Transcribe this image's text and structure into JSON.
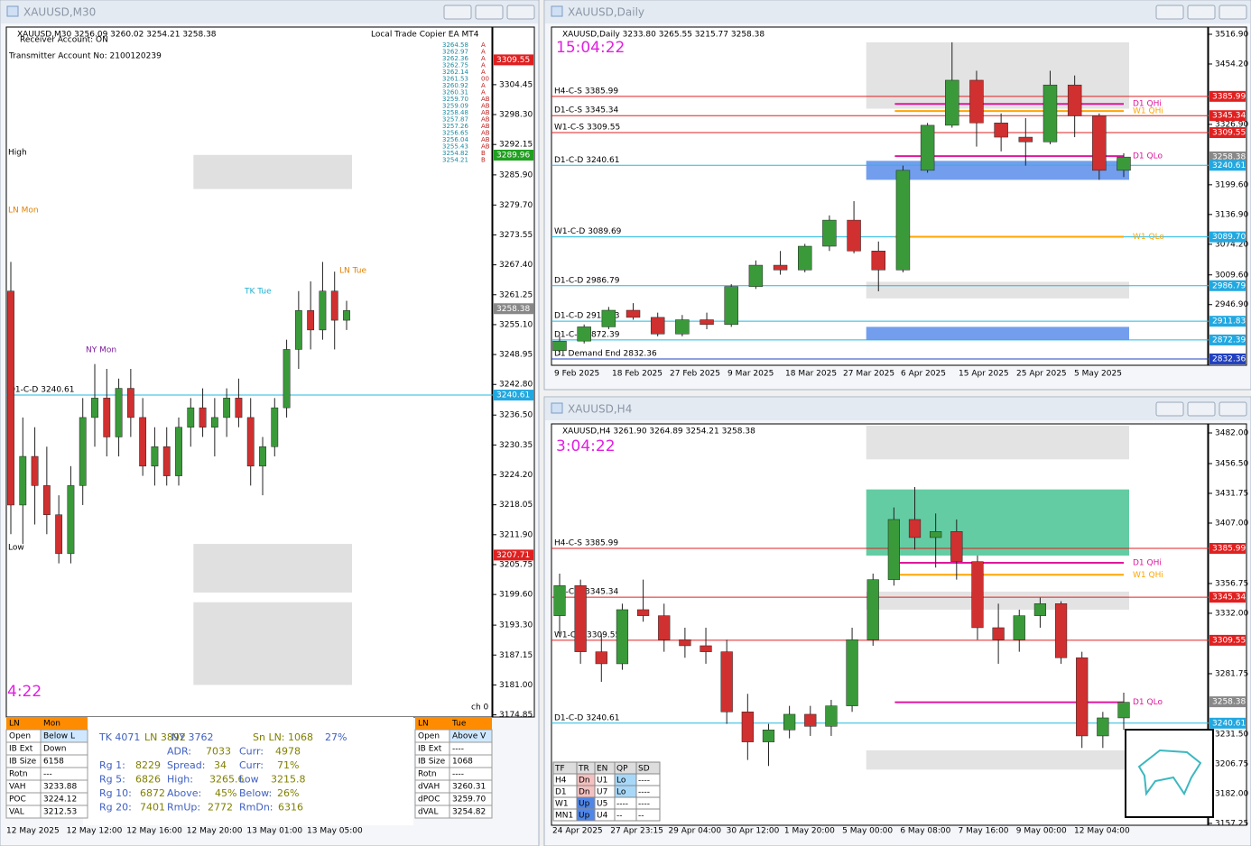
{
  "account": {
    "receiver": "Receiver Account: ON",
    "transmitter": "Transmitter Account No: 2100120239",
    "copier": "Local Trade Copier EA MT4"
  },
  "quotes": [
    [
      "3264.58",
      "A"
    ],
    [
      "3262.97",
      "A"
    ],
    [
      "3262.36",
      "A"
    ],
    [
      "3262.75",
      "A"
    ],
    [
      "3262.14",
      "A"
    ],
    [
      "3261.53",
      "00"
    ],
    [
      "3260.92",
      "A"
    ],
    [
      "3260.31",
      "A"
    ],
    [
      "3259.70",
      "AB"
    ],
    [
      "3259.09",
      "AB"
    ],
    [
      "3258.48",
      "AB"
    ],
    [
      "3257.87",
      "AB"
    ],
    [
      "3257.26",
      "AB"
    ],
    [
      "3256.65",
      "AB"
    ],
    [
      "3256.04",
      "AB"
    ],
    [
      "3255.43",
      "AB"
    ],
    [
      "3254.82",
      "B"
    ],
    [
      "3254.21",
      "B"
    ]
  ],
  "m30_labels": {
    "high": "High",
    "ln_mon": "LN Mon",
    "ny_mon": "NY Mon",
    "tk_tue": "TK Tue",
    "ln_tue": "LN Tue",
    "low": "Low",
    "timer": "4:22",
    "ch": "ch 0"
  },
  "stats": [
    [
      "TK 4071",
      "LN 3892",
      "NY 3762",
      "Sn LN: 1068",
      "27%"
    ],
    [
      "ADR:",
      "7033",
      "Curr:",
      "4978"
    ],
    [
      "Rg 1:",
      "8229",
      "Spread:",
      "34",
      "Curr:",
      "71%"
    ],
    [
      "Rg 5:",
      "6826",
      "High:",
      "3265.6",
      "Low",
      "3215.8"
    ],
    [
      "Rg 10:",
      "6872",
      "Above:",
      "45%",
      "Below:",
      "26%"
    ],
    [
      "Rg 20:",
      "7401",
      "RmUp:",
      "2772",
      "RmDn:",
      "6316"
    ]
  ],
  "session_mon": {
    "header": [
      "LN",
      "Mon"
    ],
    "rows": [
      [
        "Open",
        "Below L"
      ],
      [
        "IB Ext",
        "Down"
      ],
      [
        "IB Size",
        "6158"
      ],
      [
        "Rotn",
        "---"
      ],
      [
        "VAH",
        "3233.88"
      ],
      [
        "POC",
        "3224.12"
      ],
      [
        "VAL",
        "3212.53"
      ]
    ]
  },
  "session_tue": {
    "header": [
      "LN",
      "Tue"
    ],
    "rows": [
      [
        "Open",
        "Above V"
      ],
      [
        "IB Ext",
        "----"
      ],
      [
        "IB Size",
        "1068"
      ],
      [
        "Rotn",
        "----"
      ],
      [
        "dVAH",
        "3260.31"
      ],
      [
        "dPOC",
        "3259.70"
      ],
      [
        "dVAL",
        "3254.82"
      ]
    ]
  },
  "trend_table": {
    "header": [
      "TF",
      "TR",
      "EN",
      "QP",
      "SD"
    ],
    "rows": [
      [
        "H4",
        "Dn",
        "U1",
        "Lo",
        "----"
      ],
      [
        "D1",
        "Dn",
        "U7",
        "Lo",
        "----"
      ],
      [
        "W1",
        "Up",
        "U5",
        "----",
        "----"
      ],
      [
        "MN1",
        "Up",
        "U4",
        "--",
        "--"
      ]
    ]
  },
  "windows": [
    {
      "title": "XAUUSD,M30",
      "info": "XAUUSD,M30  3256.09 3260.02 3254.21 3258.38",
      "up_color": "#3a9a3a",
      "down_color": "#d03030",
      "ylim": [
        3174.4,
        3316.3
      ],
      "yticks": [
        3304.45,
        {
          "value": 3298.3,
          "label": "3298.30"
        },
        3292.15,
        {
          "value": 3285.9,
          "label": "3285.90"
        },
        {
          "value": 3279.7,
          "label": "3279.70"
        },
        3273.55,
        {
          "value": 3267.4,
          "label": "3267.40"
        },
        3261.25,
        {
          "value": 3255.1,
          "label": "3255.10"
        },
        3248.95,
        {
          "value": 3242.8,
          "label": "3242.80"
        },
        {
          "value": 3236.5,
          "label": "3236.50"
        },
        3230.35,
        {
          "value": 3224.2,
          "label": "3224.20"
        },
        3218.05,
        {
          "value": 3211.9,
          "label": "3211.90"
        },
        3205.75,
        {
          "value": 3199.6,
          "label": "3199.60"
        },
        {
          "value": 3193.3,
          "label": "3193.30"
        },
        3187.15,
        {
          "value": 3181,
          "label": "3181.00"
        },
        3174.85
      ],
      "zones": [
        [
          3283,
          3290,
          "#d8d8d8"
        ],
        [
          3200,
          3210,
          "#d8d8d8"
        ],
        [
          3181,
          3198,
          "#d8d8d8"
        ]
      ],
      "levels": [
        {
          "label": "D1-C-D 3240.61",
          "value": 3240.61,
          "color": "#22b8e0"
        }
      ],
      "quarter_levels": [],
      "axis_tags": [
        {
          "value": 3309.55,
          "color": "#e02020"
        },
        {
          "value": 3289.96,
          "color": "#20a020"
        },
        {
          "value": 3258.38,
          "color": "#888888"
        },
        {
          "value": 3240.61,
          "color": "#22a8e0"
        },
        {
          "value": 3207.71,
          "color": "#e02020"
        }
      ],
      "candles": [
        [
          3262,
          3268,
          3212,
          3218
        ],
        [
          3218,
          3236,
          3210,
          3228
        ],
        [
          3228,
          3234,
          3214,
          3222
        ],
        [
          3222,
          3230,
          3212,
          3216
        ],
        [
          3216,
          3220,
          3206,
          3208
        ],
        [
          3208,
          3226,
          3206,
          3222
        ],
        [
          3222,
          3240,
          3218,
          3236
        ],
        [
          3236,
          3247,
          3230,
          3240
        ],
        [
          3240,
          3246,
          3228,
          3232
        ],
        [
          3232,
          3244,
          3228,
          3242
        ],
        [
          3242,
          3246,
          3232,
          3236
        ],
        [
          3236,
          3240,
          3224,
          3226
        ],
        [
          3226,
          3234,
          3222,
          3230
        ],
        [
          3230,
          3234,
          3222,
          3224
        ],
        [
          3224,
          3236,
          3222,
          3234
        ],
        [
          3234,
          3240,
          3230,
          3238
        ],
        [
          3238,
          3242,
          3232,
          3234
        ],
        [
          3234,
          3240,
          3228,
          3236
        ],
        [
          3236,
          3242,
          3232,
          3240
        ],
        [
          3240,
          3244,
          3234,
          3236
        ],
        [
          3236,
          3240,
          3222,
          3226
        ],
        [
          3226,
          3232,
          3220,
          3230
        ],
        [
          3230,
          3240,
          3228,
          3238
        ],
        [
          3238,
          3252,
          3236,
          3250
        ],
        [
          3250,
          3262,
          3246,
          3258
        ],
        [
          3258,
          3264,
          3250,
          3254
        ],
        [
          3254,
          3268,
          3252,
          3262
        ],
        [
          3262,
          3266,
          3250,
          3256
        ],
        [
          3256,
          3260,
          3254,
          3258
        ]
      ],
      "xlabels": [
        "12 May 2025",
        "12 May 12:00",
        "12 May 16:00",
        "12 May 20:00",
        "13 May 01:00",
        "13 May 05:00"
      ]
    },
    {
      "title": "XAUUSD,Daily",
      "info": "XAUUSD,Daily  3233.80 3265.55 3215.77 3258.38",
      "timer": "15:04:22",
      "up_color": "#3a9a3a",
      "down_color": "#d03030",
      "ylim": [
        2819,
        3532.1
      ],
      "yticks": [
        {
          "value": 3516.9,
          "label": "3516.90"
        },
        {
          "value": 3454.2,
          "label": "3454.20"
        },
        {
          "value": 3326.9,
          "label": "3326.90"
        },
        {
          "value": 3199.6,
          "label": "3199.60"
        },
        {
          "value": 3136.9,
          "label": "3136.90"
        },
        {
          "value": 3074.2,
          "label": "3074.20"
        },
        {
          "value": 3009.6,
          "label": "3009.60"
        },
        {
          "value": 2946.9,
          "label": "2946.90"
        }
      ],
      "zones": [
        [
          3360,
          3500,
          "#dcdcdc"
        ],
        [
          2960,
          2995,
          "#dcdcdc"
        ],
        [
          2872,
          2900,
          "#4f86e8"
        ],
        [
          3210,
          3250,
          "#4f86e8"
        ]
      ],
      "levels": [
        {
          "label": "H4-C-S 3385.99",
          "value": 3385.99,
          "color": "#e02020"
        },
        {
          "label": "D1-C-S 3345.34",
          "value": 3345.34,
          "color": "#e02020"
        },
        {
          "label": "W1-C-S 3309.55",
          "value": 3309.55,
          "color": "#e02020"
        },
        {
          "label": "D1-C-D 3240.61",
          "value": 3240.61,
          "color": "#22b8e0"
        },
        {
          "label": "W1-C-D 3089.69",
          "value": 3089.69,
          "color": "#22b8e0"
        },
        {
          "label": "D1-C-D 2986.79",
          "value": 2986.79,
          "color": "#22b8e0"
        },
        {
          "label": "D1-C-D 2911.83",
          "value": 2911.83,
          "color": "#22b8e0"
        },
        {
          "label": "D1-C-D 2872.39",
          "value": 2872.39,
          "color": "#22b8e0"
        },
        {
          "label": "D1 Demand End 2832.36",
          "value": 2832.36,
          "color": "#2040c0"
        }
      ],
      "quarter_levels": [
        {
          "label": "D1 QHi",
          "value": 3370,
          "color": "#e0169c"
        },
        {
          "label": "W1 QHi",
          "value": 3355,
          "color": "#ffa500"
        },
        {
          "label": "D1 QLo",
          "value": 3260,
          "color": "#e0169c"
        },
        {
          "label": "W1 QLo",
          "value": 3090,
          "color": "#ffa500"
        }
      ],
      "axis_tags": [
        {
          "value": 3385.99,
          "color": "#e02020"
        },
        {
          "value": 3345.34,
          "color": "#e02020"
        },
        {
          "value": 3309.55,
          "color": "#e02020"
        },
        {
          "value": 3258.38,
          "color": "#888888"
        },
        {
          "value": 3240.61,
          "color": "#22a8e0"
        },
        {
          "value": 3089.7,
          "label": "3089.70",
          "color": "#22a8e0"
        },
        {
          "value": 2986.79,
          "color": "#22a8e0"
        },
        {
          "value": 2911.83,
          "color": "#22a8e0"
        },
        {
          "value": 2872.39,
          "color": "#22a8e0"
        },
        {
          "value": 2832.36,
          "color": "#2040c0"
        }
      ],
      "candles": [
        [
          2850,
          2880,
          2840,
          2870
        ],
        [
          2870,
          2905,
          2865,
          2900
        ],
        [
          2900,
          2942,
          2895,
          2935
        ],
        [
          2935,
          2950,
          2915,
          2920
        ],
        [
          2920,
          2930,
          2880,
          2885
        ],
        [
          2885,
          2925,
          2880,
          2915
        ],
        [
          2915,
          2930,
          2895,
          2905
        ],
        [
          2905,
          2990,
          2900,
          2985
        ],
        [
          2985,
          3040,
          2980,
          3030
        ],
        [
          3030,
          3060,
          3010,
          3020
        ],
        [
          3020,
          3075,
          3015,
          3070
        ],
        [
          3070,
          3135,
          3060,
          3125
        ],
        [
          3125,
          3165,
          3055,
          3060
        ],
        [
          3060,
          3080,
          2975,
          3020
        ],
        [
          3020,
          3240,
          3015,
          3230
        ],
        [
          3230,
          3330,
          3225,
          3325
        ],
        [
          3325,
          3500,
          3320,
          3420
        ],
        [
          3420,
          3440,
          3280,
          3330
        ],
        [
          3330,
          3350,
          3270,
          3300
        ],
        [
          3300,
          3340,
          3240,
          3290
        ],
        [
          3290,
          3440,
          3285,
          3410
        ],
        [
          3410,
          3430,
          3300,
          3345
        ],
        [
          3345,
          3350,
          3210,
          3230
        ],
        [
          3230,
          3266,
          3216,
          3258
        ]
      ],
      "xlabels": [
        "9 Feb 2025",
        "18 Feb 2025",
        "27 Feb 2025",
        "9 Mar 2025",
        "18 Mar 2025",
        "27 Mar 2025",
        "6 Apr 2025",
        "15 Apr 2025",
        "25 Apr 2025",
        "5 May 2025"
      ]
    },
    {
      "title": "XAUUSD,H4",
      "info": "XAUUSD,H4  3261.90 3264.89 3254.21 3258.38",
      "timer": "3:04:22",
      "up_color": "#3a9a3a",
      "down_color": "#d03030",
      "ylim": [
        3155.7,
        3489.5
      ],
      "yticks": [
        {
          "value": 3482,
          "label": "3482.00"
        },
        {
          "value": 3456.5,
          "label": "3456.50"
        },
        3431.75,
        {
          "value": 3407,
          "label": "3407.00"
        },
        3356.75,
        {
          "value": 3332,
          "label": "3332.00"
        },
        3281.75,
        {
          "value": 3231.5,
          "label": "3231.50"
        },
        3206.75,
        {
          "value": 3182,
          "label": "3182.00"
        },
        3157.25
      ],
      "zones": [
        [
          3380,
          3435,
          "#3cbf8c"
        ],
        [
          3460,
          3488,
          "#dcdcdc"
        ],
        [
          3335,
          3350,
          "#dcdcdc"
        ],
        [
          3202,
          3218,
          "#dcdcdc"
        ]
      ],
      "levels": [
        {
          "label": "H4-C-S 3385.99",
          "value": 3385.99,
          "color": "#e02020"
        },
        {
          "label": "D1-C-S 3345.34",
          "value": 3345.34,
          "color": "#e02020"
        },
        {
          "label": "W1-C-S 3309.55",
          "value": 3309.55,
          "color": "#e02020"
        },
        {
          "label": "D1-C-D 3240.61",
          "value": 3240.61,
          "color": "#22b8e0"
        }
      ],
      "quarter_levels": [
        {
          "label": "D1 QHi",
          "value": 3374,
          "color": "#e0169c"
        },
        {
          "label": "W1 QHi",
          "value": 3364,
          "color": "#ffa500"
        },
        {
          "label": "D1 QLo",
          "value": 3258,
          "color": "#e0169c"
        }
      ],
      "axis_tags": [
        {
          "value": 3385.99,
          "color": "#e02020"
        },
        {
          "value": 3345.34,
          "color": "#e02020"
        },
        {
          "value": 3309.55,
          "color": "#e02020"
        },
        {
          "value": 3258.38,
          "color": "#888888"
        },
        {
          "value": 3240.61,
          "color": "#22a8e0"
        }
      ],
      "candles": [
        [
          3330,
          3365,
          3315,
          3355
        ],
        [
          3355,
          3360,
          3290,
          3300
        ],
        [
          3300,
          3315,
          3275,
          3290
        ],
        [
          3290,
          3340,
          3285,
          3335
        ],
        [
          3335,
          3360,
          3325,
          3330
        ],
        [
          3330,
          3340,
          3300,
          3310
        ],
        [
          3310,
          3320,
          3295,
          3305
        ],
        [
          3305,
          3320,
          3290,
          3300
        ],
        [
          3300,
          3310,
          3240,
          3250
        ],
        [
          3250,
          3265,
          3210,
          3225
        ],
        [
          3225,
          3240,
          3205,
          3235
        ],
        [
          3235,
          3255,
          3228,
          3248
        ],
        [
          3248,
          3255,
          3230,
          3238
        ],
        [
          3238,
          3260,
          3230,
          3255
        ],
        [
          3255,
          3320,
          3250,
          3310
        ],
        [
          3310,
          3365,
          3305,
          3360
        ],
        [
          3360,
          3420,
          3355,
          3410
        ],
        [
          3410,
          3437,
          3385,
          3395
        ],
        [
          3395,
          3415,
          3370,
          3400
        ],
        [
          3400,
          3410,
          3360,
          3375
        ],
        [
          3375,
          3380,
          3310,
          3320
        ],
        [
          3320,
          3340,
          3290,
          3310
        ],
        [
          3310,
          3335,
          3300,
          3330
        ],
        [
          3330,
          3345,
          3320,
          3340
        ],
        [
          3340,
          3342,
          3290,
          3295
        ],
        [
          3295,
          3300,
          3220,
          3230
        ],
        [
          3230,
          3250,
          3220,
          3245
        ],
        [
          3245,
          3266,
          3235,
          3258
        ]
      ],
      "xlabels": [
        "24 Apr 2025",
        "27 Apr 23:15",
        "29 Apr 04:00",
        "30 Apr 12:00",
        "1 May 20:00",
        "5 May 00:00",
        "6 May 08:00",
        "7 May 16:00",
        "9 May 00:00",
        "12 May 04:00"
      ]
    }
  ]
}
